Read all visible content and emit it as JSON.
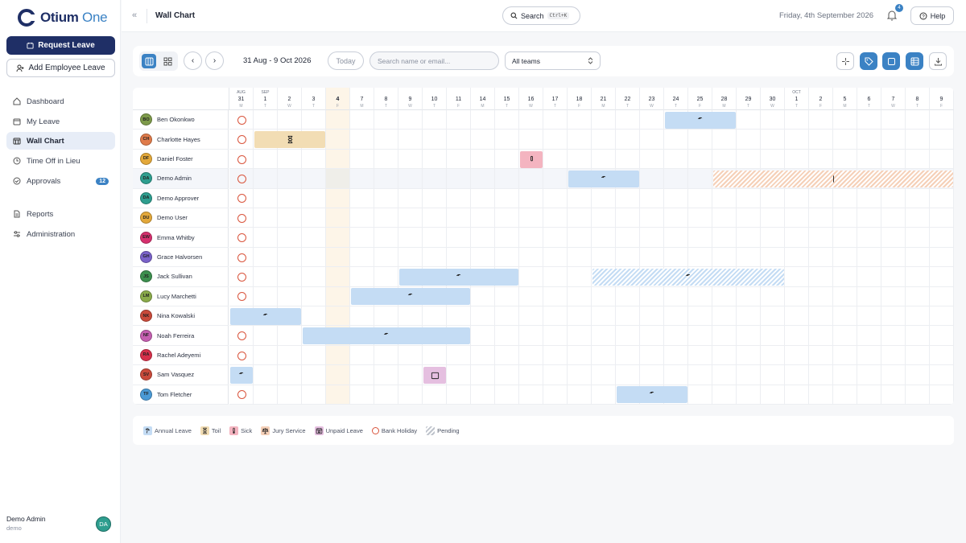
{
  "app": {
    "name_main": "Otium",
    "name_accent": "One"
  },
  "sidebar": {
    "request_leave": "Request Leave",
    "add_employee_leave": "Add Employee Leave",
    "nav": [
      {
        "label": "Dashboard",
        "icon": "home-icon"
      },
      {
        "label": "My Leave",
        "icon": "calendar-icon"
      },
      {
        "label": "Wall Chart",
        "icon": "calendar-grid-icon",
        "active": true
      },
      {
        "label": "Time Off in Lieu",
        "icon": "clock-icon"
      },
      {
        "label": "Approvals",
        "icon": "check-circle-icon",
        "badge": "12"
      },
      {
        "label": "Reports",
        "icon": "document-icon"
      },
      {
        "label": "Administration",
        "icon": "sliders-icon"
      }
    ],
    "user": {
      "name": "Demo Admin",
      "role": "demo",
      "initials": "DA"
    }
  },
  "header": {
    "title": "Wall Chart",
    "search_label": "Search",
    "search_shortcut": "Ctrl+K",
    "date": "Friday, 4th September 2026",
    "notifications": "4",
    "help": "Help"
  },
  "toolbar": {
    "range": "31 Aug - 9 Oct 2026",
    "today": "Today",
    "search_placeholder": "Search name or email...",
    "team_select": "All teams"
  },
  "days": [
    {
      "m": "AUG",
      "n": "31",
      "d": "M"
    },
    {
      "m": "SEP",
      "n": "1",
      "d": "T"
    },
    {
      "m": "",
      "n": "2",
      "d": "W"
    },
    {
      "m": "",
      "n": "3",
      "d": "T"
    },
    {
      "m": "",
      "n": "4",
      "d": "F",
      "today": true
    },
    {
      "m": "",
      "n": "7",
      "d": "M"
    },
    {
      "m": "",
      "n": "8",
      "d": "T"
    },
    {
      "m": "",
      "n": "9",
      "d": "W"
    },
    {
      "m": "",
      "n": "10",
      "d": "T"
    },
    {
      "m": "",
      "n": "11",
      "d": "F"
    },
    {
      "m": "",
      "n": "14",
      "d": "M"
    },
    {
      "m": "",
      "n": "15",
      "d": "T"
    },
    {
      "m": "",
      "n": "16",
      "d": "W"
    },
    {
      "m": "",
      "n": "17",
      "d": "T"
    },
    {
      "m": "",
      "n": "18",
      "d": "F"
    },
    {
      "m": "",
      "n": "21",
      "d": "M"
    },
    {
      "m": "",
      "n": "22",
      "d": "T"
    },
    {
      "m": "",
      "n": "23",
      "d": "W"
    },
    {
      "m": "",
      "n": "24",
      "d": "T"
    },
    {
      "m": "",
      "n": "25",
      "d": "F"
    },
    {
      "m": "",
      "n": "28",
      "d": "M"
    },
    {
      "m": "",
      "n": "29",
      "d": "T"
    },
    {
      "m": "",
      "n": "30",
      "d": "W"
    },
    {
      "m": "OCT",
      "n": "1",
      "d": "T"
    },
    {
      "m": "",
      "n": "2",
      "d": "F"
    },
    {
      "m": "",
      "n": "5",
      "d": "M"
    },
    {
      "m": "",
      "n": "6",
      "d": "T"
    },
    {
      "m": "",
      "n": "7",
      "d": "W"
    },
    {
      "m": "",
      "n": "8",
      "d": "T"
    },
    {
      "m": "",
      "n": "9",
      "d": "F"
    }
  ],
  "colors": {
    "annual": "#c4dcf4",
    "toil": "#f2ddb4",
    "sick": "#f4b4c0",
    "jury": "#f5d0b8",
    "unpaid": "#e5bfe0",
    "bank": "#d9543c",
    "primary": "#1f2f66",
    "accent": "#3b82c4"
  },
  "employees": [
    {
      "initials": "BO",
      "name": "Ben Okonkwo",
      "color": "#7d9a4a",
      "leave": [
        {
          "type": "annual",
          "start": 18,
          "end": 20
        }
      ]
    },
    {
      "initials": "CH",
      "name": "Charlotte Hayes",
      "color": "#e07b4a",
      "leave": [
        {
          "type": "toil",
          "start": 1,
          "end": 3
        }
      ]
    },
    {
      "initials": "DF",
      "name": "Daniel Foster",
      "color": "#e3a83a",
      "leave": [
        {
          "type": "sick",
          "start": 12,
          "end": 12
        }
      ]
    },
    {
      "initials": "DA",
      "name": "Demo Admin",
      "color": "#2e9e8f",
      "highlight": true,
      "leave": [
        {
          "type": "annual",
          "start": 14,
          "end": 16
        },
        {
          "type": "jury",
          "start": 20,
          "end": 29,
          "pending": true
        }
      ]
    },
    {
      "initials": "DA",
      "name": "Demo Approver",
      "color": "#2e9e8f",
      "leave": []
    },
    {
      "initials": "DU",
      "name": "Demo User",
      "color": "#e3a83a",
      "leave": []
    },
    {
      "initials": "EW",
      "name": "Emma Whitby",
      "color": "#d6306e",
      "leave": []
    },
    {
      "initials": "GH",
      "name": "Grace Halvorsen",
      "color": "#7a62c9",
      "leave": []
    },
    {
      "initials": "JS",
      "name": "Jack Sullivan",
      "color": "#3d8f4e",
      "leave": [
        {
          "type": "annual",
          "start": 7,
          "end": 11
        },
        {
          "type": "annual",
          "start": 15,
          "end": 22,
          "pending": true
        }
      ]
    },
    {
      "initials": "LM",
      "name": "Lucy Marchetti",
      "color": "#8aab4a",
      "leave": [
        {
          "type": "annual",
          "start": 5,
          "end": 9
        }
      ]
    },
    {
      "initials": "NK",
      "name": "Nina Kowalski",
      "color": "#c94a3a",
      "leave": [
        {
          "type": "annual",
          "start": 0,
          "end": 2
        }
      ]
    },
    {
      "initials": "NF",
      "name": "Noah Ferreira",
      "color": "#c45fb0",
      "leave": [
        {
          "type": "annual",
          "start": 3,
          "end": 9
        }
      ]
    },
    {
      "initials": "RA",
      "name": "Rachel Adeyemi",
      "color": "#d6304a",
      "leave": []
    },
    {
      "initials": "SV",
      "name": "Sam Vasquez",
      "color": "#c94a3a",
      "leave": [
        {
          "type": "annual",
          "start": 0,
          "end": 0
        },
        {
          "type": "unpaid",
          "start": 8,
          "end": 8
        }
      ]
    },
    {
      "initials": "TF",
      "name": "Tom Fletcher",
      "color": "#4a9ad6",
      "leave": [
        {
          "type": "annual",
          "start": 16,
          "end": 18
        }
      ]
    }
  ],
  "legend": [
    {
      "type": "annual",
      "label": "Annual Leave"
    },
    {
      "type": "toil",
      "label": "Toil"
    },
    {
      "type": "sick",
      "label": "Sick"
    },
    {
      "type": "jury",
      "label": "Jury Service"
    },
    {
      "type": "unpaid",
      "label": "Unpaid Leave"
    },
    {
      "type": "bank",
      "label": "Bank Holiday"
    },
    {
      "type": "pending",
      "label": "Pending"
    }
  ]
}
